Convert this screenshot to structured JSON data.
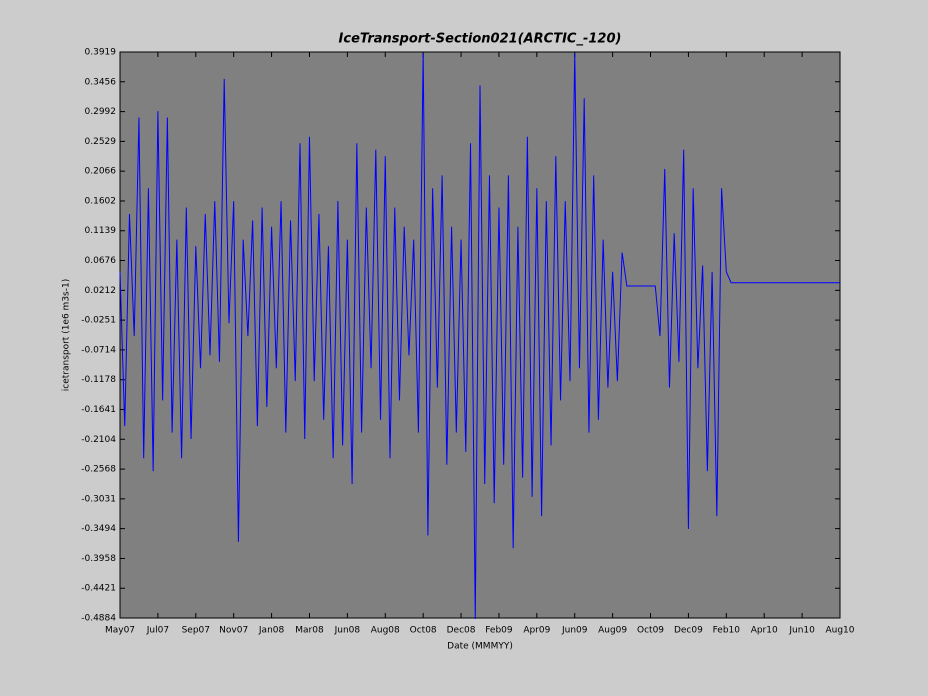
{
  "chart_data": {
    "type": "line",
    "title": "IceTransport-Section021(ARCTIC_-120)",
    "xlabel": "Date (MMMYY)",
    "ylabel": "icetransport (1e6 m3s-1)",
    "categories": [
      "May07",
      null,
      null,
      null,
      null,
      null,
      null,
      null,
      "Jul07",
      null,
      null,
      null,
      null,
      null,
      null,
      null,
      "Sep07",
      null,
      null,
      null,
      null,
      null,
      null,
      null,
      "Nov07",
      null,
      null,
      null,
      null,
      null,
      null,
      null,
      "Jan08",
      null,
      null,
      null,
      null,
      null,
      null,
      null,
      "Mar08",
      null,
      null,
      null,
      null,
      null,
      null,
      null,
      "Jun08",
      null,
      null,
      null,
      null,
      null,
      null,
      null,
      "Aug08",
      null,
      null,
      null,
      null,
      null,
      null,
      null,
      "Oct08",
      null,
      null,
      null,
      null,
      null,
      null,
      null,
      "Dec08",
      null,
      null,
      null,
      null,
      null,
      null,
      null,
      "Feb09",
      null,
      null,
      null,
      null,
      null,
      null,
      null,
      "Apr09",
      null,
      null,
      null,
      null,
      null,
      null,
      null,
      "Jun09",
      null,
      null,
      null,
      null,
      null,
      null,
      null,
      "Aug09",
      null,
      null,
      null,
      null,
      null,
      null,
      null,
      "Oct09",
      null,
      null,
      null,
      null,
      null,
      null,
      null,
      "Dec09",
      null,
      null,
      null,
      null,
      null,
      null,
      null,
      "Feb10",
      null,
      null,
      null,
      null,
      null,
      null,
      null,
      "Apr10",
      null,
      null,
      null,
      null,
      null,
      null,
      null,
      "Jun10",
      null,
      null,
      null,
      null,
      null,
      null,
      null,
      "Aug10"
    ],
    "series": [
      {
        "name": "icetransport",
        "color": "#0000ff",
        "values": [
          0.05,
          -0.19,
          0.14,
          -0.05,
          0.29,
          -0.24,
          0.18,
          -0.26,
          0.3,
          -0.15,
          0.29,
          -0.2,
          0.1,
          -0.24,
          0.15,
          -0.21,
          0.09,
          -0.1,
          0.14,
          -0.08,
          0.16,
          -0.09,
          0.35,
          -0.03,
          0.16,
          -0.37,
          0.1,
          -0.05,
          0.13,
          -0.19,
          0.15,
          -0.16,
          0.12,
          -0.1,
          0.16,
          -0.2,
          0.13,
          -0.12,
          0.25,
          -0.21,
          0.26,
          -0.12,
          0.14,
          -0.18,
          0.09,
          -0.24,
          0.16,
          -0.22,
          0.1,
          -0.28,
          0.25,
          -0.2,
          0.15,
          -0.1,
          0.24,
          -0.18,
          0.23,
          -0.24,
          0.15,
          -0.15,
          0.12,
          -0.08,
          0.1,
          -0.2,
          0.39,
          -0.36,
          0.18,
          -0.13,
          0.2,
          -0.25,
          0.12,
          -0.2,
          0.1,
          -0.23,
          0.25,
          -0.49,
          0.34,
          -0.28,
          0.2,
          -0.31,
          0.15,
          -0.25,
          0.2,
          -0.38,
          0.12,
          -0.27,
          0.26,
          -0.3,
          0.18,
          -0.33,
          0.16,
          -0.22,
          0.23,
          -0.15,
          0.16,
          -0.12,
          0.39,
          -0.1,
          0.32,
          -0.2,
          0.2,
          -0.18,
          0.1,
          -0.13,
          0.05,
          -0.12,
          0.08,
          0.028,
          0.028,
          0.028,
          0.028,
          0.028,
          0.028,
          0.028,
          -0.05,
          0.21,
          -0.13,
          0.11,
          -0.09,
          0.24,
          -0.35,
          0.18,
          -0.1,
          0.06,
          -0.26,
          0.05,
          -0.33,
          0.18,
          0.05,
          0.033,
          0.033,
          0.033,
          0.033,
          0.033,
          0.033,
          0.033,
          0.033,
          0.033,
          0.033,
          0.033,
          0.033,
          0.033,
          0.033,
          0.033,
          0.033,
          0.033,
          0.033,
          0.033,
          0.033,
          0.033,
          0.033,
          0.033,
          0.033
        ]
      }
    ],
    "ylim": [
      -0.4884,
      0.3919
    ],
    "yticks": [
      -0.4884,
      -0.4421,
      -0.3958,
      -0.3494,
      -0.3031,
      -0.2568,
      -0.2104,
      -0.1641,
      -0.1178,
      -0.0714,
      -0.0251,
      0.0212,
      0.0676,
      0.1139,
      0.1602,
      0.2066,
      0.2529,
      0.2992,
      0.3456,
      0.3919
    ]
  }
}
